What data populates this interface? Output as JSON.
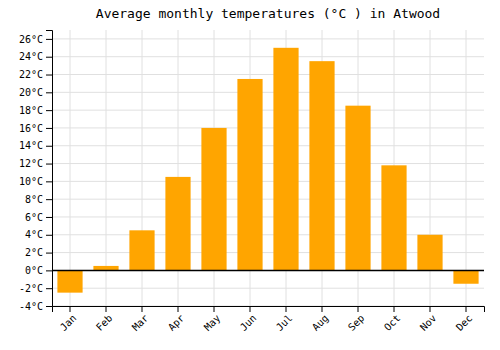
{
  "chart_data": {
    "type": "bar",
    "title": "Average monthly temperatures (°C ) in Atwood",
    "categories": [
      "Jan",
      "Feb",
      "Mar",
      "Apr",
      "May",
      "Jun",
      "Jul",
      "Aug",
      "Sep",
      "Oct",
      "Nov",
      "Dec"
    ],
    "values": [
      -2.5,
      0.5,
      4.5,
      10.5,
      16.0,
      21.5,
      25.0,
      23.5,
      18.5,
      11.8,
      4.0,
      -1.5
    ],
    "color": "#FFA500",
    "ylim": [
      -4,
      27
    ],
    "yticks": [
      {
        "value": -4,
        "label": "-4°C"
      },
      {
        "value": -2,
        "label": "-2°C"
      },
      {
        "value": 0,
        "label": "0°C"
      },
      {
        "value": 2,
        "label": "2°C"
      },
      {
        "value": 4,
        "label": "4°C"
      },
      {
        "value": 6,
        "label": "6°C"
      },
      {
        "value": 8,
        "label": "8°C"
      },
      {
        "value": 10,
        "label": "10°C"
      },
      {
        "value": 12,
        "label": "12°C"
      },
      {
        "value": 14,
        "label": "14°C"
      },
      {
        "value": 16,
        "label": "16°C"
      },
      {
        "value": 18,
        "label": "18°C"
      },
      {
        "value": 20,
        "label": "20°C"
      },
      {
        "value": 22,
        "label": "22°C"
      },
      {
        "value": 24,
        "label": "24°C"
      },
      {
        "value": 26,
        "label": "26°C"
      }
    ],
    "grid": true
  }
}
